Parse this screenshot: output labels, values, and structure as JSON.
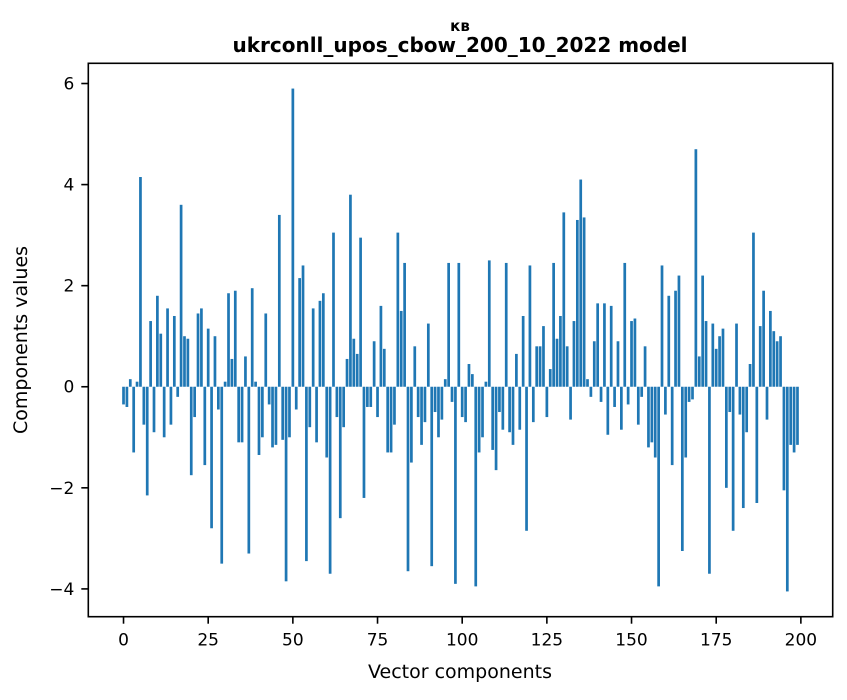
{
  "figure": {
    "title_line1": "кв",
    "title_line2": "ukrconll_upos_cbow_200_10_2022 model",
    "xlabel": "Vector components",
    "ylabel": "Components values"
  },
  "chart_data": {
    "type": "bar",
    "title": "кв",
    "subtitle": "ukrconll_upos_cbow_200_10_2022 model",
    "xlabel": "Vector components",
    "ylabel": "Components values",
    "bar_color": "#1f77b4",
    "axis_color": "#000000",
    "grid": false,
    "legend": null,
    "x_start": 0,
    "x_ticks": [
      0,
      25,
      50,
      75,
      100,
      125,
      150,
      175,
      200
    ],
    "y_ticks": [
      -4,
      -2,
      0,
      2,
      4,
      6
    ],
    "xlim": [
      -10.4,
      209.4
    ],
    "ylim": [
      -4.55,
      6.4
    ],
    "values": [
      -0.35,
      -0.4,
      0.15,
      -1.3,
      0.1,
      4.15,
      -0.75,
      -2.15,
      1.3,
      -0.9,
      1.8,
      1.05,
      -1.0,
      1.55,
      -0.75,
      1.4,
      -0.2,
      3.6,
      1.0,
      0.95,
      -1.75,
      -0.6,
      1.45,
      1.55,
      -1.55,
      1.15,
      -2.8,
      1.0,
      -0.45,
      -3.5,
      0.1,
      1.85,
      0.55,
      1.9,
      -1.1,
      -1.1,
      0.6,
      -3.3,
      1.95,
      0.1,
      -1.35,
      -1.0,
      1.45,
      -0.35,
      -1.2,
      -1.15,
      3.4,
      -1.05,
      -3.85,
      -1.0,
      5.9,
      -0.45,
      2.15,
      2.4,
      -3.45,
      -0.8,
      1.55,
      -1.1,
      1.7,
      1.85,
      -1.4,
      -3.7,
      3.05,
      -0.6,
      -2.6,
      -0.8,
      0.55,
      3.8,
      0.95,
      0.65,
      2.95,
      -2.2,
      -0.4,
      -0.4,
      0.9,
      -0.6,
      1.6,
      0.75,
      -1.3,
      -1.3,
      -0.75,
      3.05,
      1.5,
      2.45,
      -3.65,
      -1.5,
      0.8,
      -0.6,
      -1.15,
      -0.7,
      1.25,
      -3.55,
      -0.5,
      -1.0,
      -0.65,
      0.15,
      2.45,
      -0.3,
      -3.9,
      2.45,
      -0.6,
      -0.7,
      0.45,
      0.25,
      -3.95,
      -1.3,
      -1.0,
      0.1,
      2.5,
      -1.25,
      -1.65,
      -0.5,
      -0.85,
      2.45,
      -0.9,
      -1.15,
      0.65,
      -0.85,
      1.4,
      -2.85,
      2.4,
      -0.7,
      0.8,
      0.8,
      1.2,
      -0.6,
      0.35,
      2.45,
      0.95,
      1.4,
      3.45,
      0.8,
      -0.65,
      1.3,
      3.3,
      4.1,
      3.35,
      0.15,
      -0.2,
      0.9,
      1.65,
      -0.3,
      1.65,
      -0.95,
      1.6,
      -0.4,
      0.9,
      -0.85,
      2.45,
      -0.35,
      1.3,
      1.35,
      -0.75,
      -0.2,
      0.8,
      -1.2,
      -1.1,
      -1.4,
      -3.95,
      2.4,
      -0.55,
      1.8,
      -1.55,
      1.9,
      2.2,
      -3.25,
      -1.4,
      -0.3,
      -0.25,
      4.7,
      0.6,
      2.2,
      1.3,
      -3.7,
      1.25,
      0.75,
      1.0,
      1.15,
      -2.0,
      -0.5,
      -2.85,
      1.25,
      -0.55,
      -2.4,
      -0.9,
      0.45,
      3.05,
      -2.3,
      1.2,
      1.9,
      -0.65,
      1.5,
      1.1,
      0.9,
      1.0,
      -2.05,
      -4.05,
      -1.15,
      -1.3,
      -1.15
    ]
  }
}
